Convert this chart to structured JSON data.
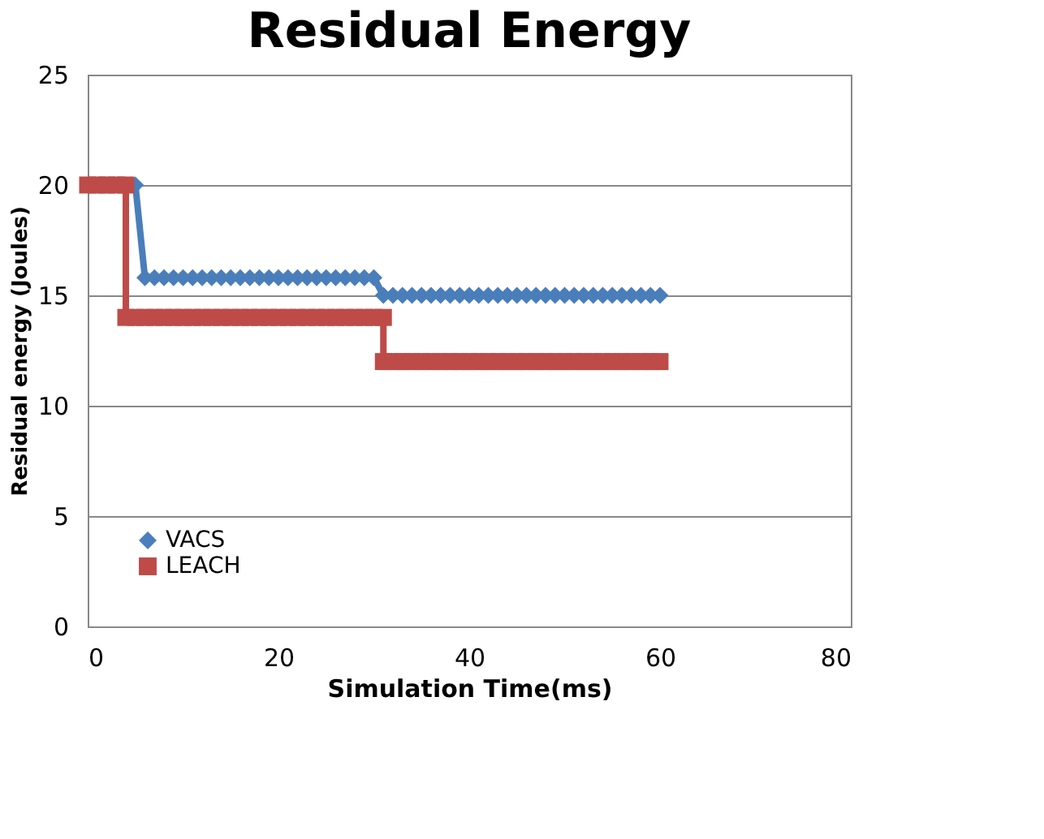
{
  "chart_data": {
    "type": "line",
    "title": "Residual Energy",
    "xlabel": "Simulation Time(ms)",
    "ylabel": "Residual energy (Joules)",
    "xlim": [
      0,
      80
    ],
    "xticks": [
      0,
      20,
      40,
      60,
      80
    ],
    "ylim": [
      0,
      25
    ],
    "yticks": [
      0,
      5,
      10,
      15,
      20,
      25
    ],
    "grid": "y",
    "legend": "bottom left",
    "series": [
      {
        "name": "VACS",
        "color": "#4a7ebb",
        "marker": "diamond",
        "x": [
          5,
          6,
          7,
          8,
          9,
          10,
          11,
          12,
          13,
          14,
          15,
          16,
          17,
          18,
          19,
          20,
          21,
          22,
          23,
          24,
          25,
          26,
          27,
          28,
          29,
          30,
          31,
          32,
          33,
          34,
          35,
          36,
          37,
          38,
          39,
          40,
          41,
          42,
          43,
          44,
          45,
          46,
          47,
          48,
          49,
          50,
          51,
          52,
          53,
          54,
          55,
          56,
          57,
          58,
          59,
          60
        ],
        "values": [
          20,
          15.8,
          15.8,
          15.8,
          15.8,
          15.8,
          15.8,
          15.8,
          15.8,
          15.8,
          15.8,
          15.8,
          15.8,
          15.8,
          15.8,
          15.8,
          15.8,
          15.8,
          15.8,
          15.8,
          15.8,
          15.8,
          15.8,
          15.8,
          15.8,
          15.8,
          15,
          15,
          15,
          15,
          15,
          15,
          15,
          15,
          15,
          15,
          15,
          15,
          15,
          15,
          15,
          15,
          15,
          15,
          15,
          15,
          15,
          15,
          15,
          15,
          15,
          15,
          15,
          15,
          15,
          15
        ]
      },
      {
        "name": "LEACH",
        "color": "#be4b48",
        "marker": "square",
        "x": [
          0,
          1,
          2,
          3,
          4,
          4,
          5,
          6,
          7,
          8,
          9,
          10,
          11,
          12,
          13,
          14,
          15,
          16,
          17,
          18,
          19,
          20,
          21,
          22,
          23,
          24,
          25,
          26,
          27,
          28,
          29,
          30,
          31,
          31,
          32,
          33,
          34,
          35,
          36,
          37,
          38,
          39,
          40,
          41,
          42,
          43,
          44,
          45,
          46,
          47,
          48,
          49,
          50,
          51,
          52,
          53,
          54,
          55,
          56,
          57,
          58,
          59,
          60
        ],
        "values": [
          20,
          20,
          20,
          20,
          20,
          14,
          14,
          14,
          14,
          14,
          14,
          14,
          14,
          14,
          14,
          14,
          14,
          14,
          14,
          14,
          14,
          14,
          14,
          14,
          14,
          14,
          14,
          14,
          14,
          14,
          14,
          14,
          14,
          12,
          12,
          12,
          12,
          12,
          12,
          12,
          12,
          12,
          12,
          12,
          12,
          12,
          12,
          12,
          12,
          12,
          12,
          12,
          12,
          12,
          12,
          12,
          12,
          12,
          12,
          12,
          12,
          12,
          12
        ]
      }
    ]
  }
}
